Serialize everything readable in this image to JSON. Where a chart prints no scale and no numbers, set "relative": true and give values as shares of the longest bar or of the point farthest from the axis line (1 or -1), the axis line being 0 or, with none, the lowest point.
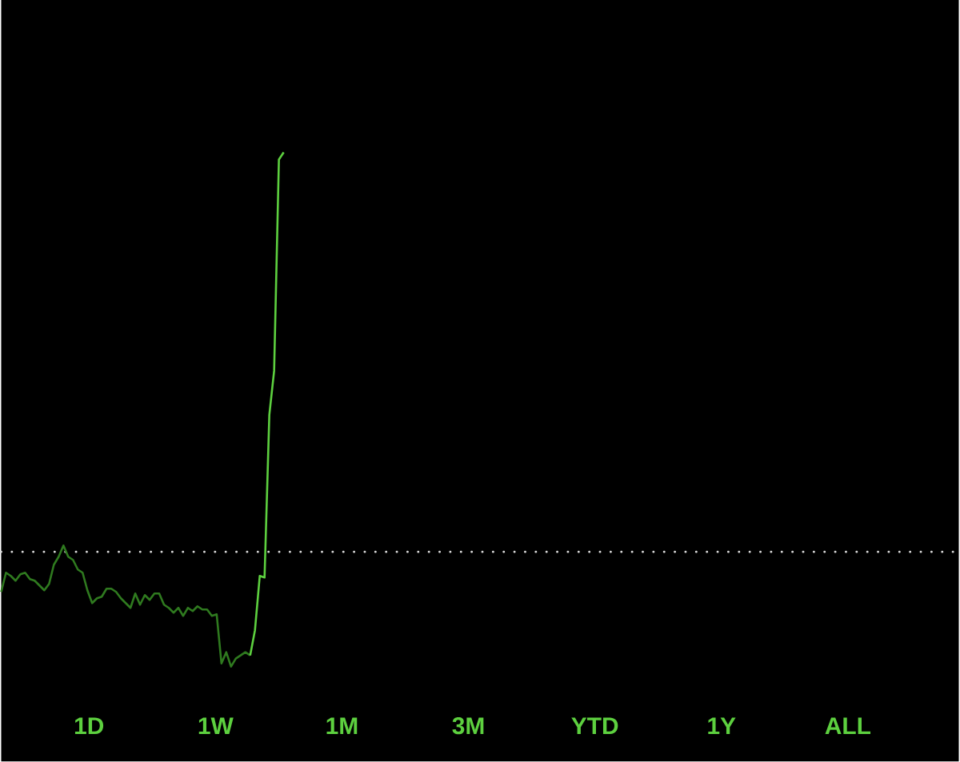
{
  "chart_data": {
    "type": "line",
    "relative": true,
    "categories": [
      null,
      null,
      null,
      null,
      null,
      null,
      null,
      null,
      null,
      null,
      null,
      null,
      null,
      null,
      null,
      null,
      null,
      null,
      null,
      null,
      null,
      null,
      null,
      null,
      null,
      null,
      null,
      null,
      null,
      null,
      null,
      null,
      null,
      null,
      null,
      null,
      null,
      null,
      null,
      null,
      null,
      null,
      null,
      null,
      null,
      null,
      null,
      null,
      null,
      null,
      null,
      null,
      null,
      null,
      null,
      null,
      null,
      null,
      null,
      null,
      null,
      null,
      null,
      null,
      null,
      null,
      null,
      null,
      null,
      null,
      null,
      null,
      null,
      null,
      null,
      null,
      null,
      null,
      null,
      null,
      null,
      null,
      null,
      null,
      null,
      null,
      null,
      null,
      null,
      null,
      null,
      null,
      null,
      null,
      null,
      null,
      null,
      null,
      null,
      null,
      null,
      null,
      null,
      null,
      null,
      null,
      null,
      null,
      null,
      null,
      null,
      null,
      null,
      null,
      null,
      null,
      null,
      null,
      null,
      null,
      null,
      null,
      null,
      null,
      null,
      null,
      null,
      null,
      null,
      null,
      null,
      null,
      null,
      null,
      null,
      null,
      null,
      null,
      null,
      null,
      null,
      null,
      null,
      null,
      null,
      null,
      null,
      null,
      null,
      null,
      null,
      null,
      null,
      null,
      null,
      null,
      null,
      null,
      null,
      null,
      null,
      null,
      null,
      null,
      null,
      null,
      null,
      null,
      null,
      null,
      null,
      null,
      null,
      null,
      null,
      null,
      null,
      null,
      null,
      null,
      null,
      null,
      null,
      null,
      null,
      null,
      null,
      null,
      null,
      null,
      null,
      null,
      null,
      null,
      null,
      null,
      null,
      null,
      null,
      null
    ],
    "series": [
      {
        "color": "#2f7a1f",
        "values": [
          -0.1,
          -0.052,
          -0.06,
          -0.072,
          -0.056,
          -0.052,
          -0.068,
          -0.072,
          -0.084,
          -0.096,
          -0.08,
          -0.032,
          -0.012,
          0.016,
          -0.012,
          -0.02,
          -0.044,
          -0.052,
          -0.096,
          -0.128,
          -0.116,
          -0.112,
          -0.092,
          -0.092,
          -0.1,
          -0.116,
          -0.128,
          -0.14,
          -0.104,
          -0.132,
          -0.108,
          -0.12,
          -0.104,
          -0.104,
          -0.132,
          -0.14,
          -0.152,
          -0.14,
          -0.16,
          -0.14,
          -0.148,
          -0.136,
          -0.144,
          -0.144,
          -0.16,
          -0.156,
          -0.279,
          -0.251,
          -0.287,
          -0.267,
          -0.259,
          -0.251,
          -0.259,
          null,
          null,
          null,
          null,
          null,
          null,
          null,
          null,
          null,
          null,
          null,
          null,
          null,
          null,
          null,
          null,
          null,
          null,
          null,
          null,
          null,
          null,
          null,
          null,
          null,
          null,
          null,
          null,
          null,
          null,
          null,
          null,
          null,
          null,
          null,
          null,
          null,
          null,
          null,
          null,
          null,
          null,
          null,
          null,
          null,
          null,
          null,
          null,
          null,
          null,
          null,
          null,
          null,
          null,
          null,
          null,
          null,
          null,
          null,
          null,
          null,
          null,
          null,
          null,
          null,
          null,
          null,
          null,
          null,
          null,
          null,
          null,
          null,
          null,
          null,
          null,
          null,
          null,
          null,
          null,
          null,
          null,
          null,
          null,
          null,
          null,
          null,
          null,
          null,
          null,
          null,
          null,
          null,
          null,
          null,
          null,
          null,
          null,
          null,
          null,
          null,
          null,
          null,
          null,
          null,
          null,
          null,
          null,
          null,
          null,
          null,
          null,
          null,
          null,
          null,
          null,
          null,
          null,
          null,
          null,
          null,
          null,
          null,
          null,
          null,
          null,
          null,
          null,
          null,
          null,
          null,
          null,
          null,
          null,
          null,
          null,
          null,
          null,
          null,
          null,
          null,
          null,
          null,
          null,
          null,
          null,
          null
        ]
      },
      {
        "color": "#5dd03f",
        "values": [
          null,
          null,
          null,
          null,
          null,
          null,
          null,
          null,
          null,
          null,
          null,
          null,
          null,
          null,
          null,
          null,
          null,
          null,
          null,
          null,
          null,
          null,
          null,
          null,
          null,
          null,
          null,
          null,
          null,
          null,
          null,
          null,
          null,
          null,
          null,
          null,
          null,
          null,
          null,
          null,
          null,
          null,
          null,
          null,
          null,
          null,
          null,
          null,
          null,
          null,
          null,
          null,
          -0.259,
          -0.196,
          -0.06,
          -0.064,
          0.343,
          0.453,
          0.982,
          1,
          null,
          null,
          null,
          null,
          null,
          null,
          null,
          null,
          null,
          null,
          null,
          null,
          null,
          null,
          null,
          null,
          null,
          null,
          null,
          null,
          null,
          null,
          null,
          null,
          null,
          null,
          null,
          null,
          null,
          null,
          null,
          null,
          null,
          null,
          null,
          null,
          null,
          null,
          null,
          null,
          null,
          null,
          null,
          null,
          null,
          null,
          null,
          null,
          null,
          null,
          null,
          null,
          null,
          null,
          null,
          null,
          null,
          null,
          null,
          null,
          null,
          null,
          null,
          null,
          null,
          null,
          null,
          null,
          null,
          null,
          null,
          null,
          null,
          null,
          null,
          null,
          null,
          null,
          null,
          null,
          null,
          null,
          null,
          null,
          null,
          null,
          null,
          null,
          null,
          null,
          null,
          null,
          null,
          null,
          null,
          null,
          null,
          null,
          null,
          null,
          null,
          null,
          null,
          null,
          null,
          null,
          null,
          null,
          null,
          null,
          null,
          null,
          null,
          null,
          null,
          null,
          null,
          null,
          null,
          null,
          null,
          null,
          null,
          null,
          null,
          null,
          null,
          null,
          null,
          null,
          null,
          null,
          null,
          null,
          null,
          null,
          null,
          null,
          null,
          null
        ]
      }
    ],
    "ref_lines": [
      {
        "axis": "y",
        "value": 0,
        "color": "#d8d8d8",
        "line_style": "dotted"
      }
    ],
    "annotations": [
      "1D",
      "1W",
      "1M",
      "3M",
      "YTD",
      "1Y",
      "ALL"
    ]
  }
}
